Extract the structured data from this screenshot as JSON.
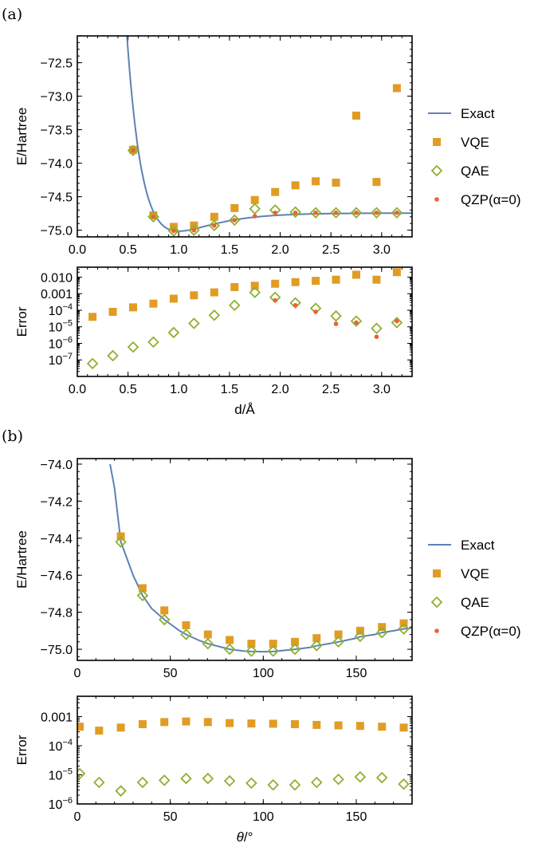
{
  "colors": {
    "exact": "#5e81b5",
    "vqe": "#e19c24",
    "qae": "#8fb032",
    "qzp": "#eb6235"
  },
  "chart_data": [
    {
      "id": "a-energy",
      "panel_label": "(a)",
      "type": "scatter",
      "xlim": [
        0,
        3.3
      ],
      "ylim": [
        -75.1,
        -72.1
      ],
      "xticks": [
        0,
        0.5,
        1,
        1.5,
        2,
        2.5,
        3
      ],
      "xticklabels": [
        "0.0",
        "0.5",
        "1.0",
        "1.5",
        "2.0",
        "2.5",
        "3.0"
      ],
      "yticks": [
        -72.5,
        -73,
        -73.5,
        -74,
        -74.5,
        -75
      ],
      "yticklabels": [
        "-72.5",
        "-73.0",
        "-73.5",
        "-74.0",
        "-74.5",
        "-75.0"
      ],
      "ylabel": "E/Hartree",
      "xlabel": "",
      "legend": {
        "entries": [
          "Exact",
          "VQE",
          "QAE",
          "QZP(α=0)"
        ],
        "placement": "right"
      },
      "exact": {
        "model": "morse",
        "De": 0.27,
        "a": 2.85,
        "re": 1.0,
        "Emin": -75.015,
        "xrange": [
          0.48,
          3.3
        ]
      },
      "series": [
        {
          "name": "VQE",
          "x": [
            0.55,
            0.75,
            0.95,
            1.15,
            1.35,
            1.55,
            1.75,
            1.95,
            2.15,
            2.35,
            2.55,
            2.75,
            2.95,
            3.15
          ],
          "y": [
            -73.8,
            -74.78,
            -74.95,
            -74.93,
            -74.8,
            -74.67,
            -74.55,
            -74.43,
            -74.33,
            -74.27,
            -74.29,
            -73.29,
            -74.28,
            -72.88
          ]
        },
        {
          "name": "QAE",
          "x": [
            0.55,
            0.75,
            0.95,
            1.15,
            1.35,
            1.55,
            1.75,
            1.95,
            2.15,
            2.35,
            2.55,
            2.75,
            2.95,
            3.15
          ],
          "y": [
            -73.81,
            -74.8,
            -75.01,
            -75.0,
            -74.93,
            -74.85,
            -74.68,
            -74.7,
            -74.73,
            -74.74,
            -74.74,
            -74.74,
            -74.74,
            -74.74
          ]
        },
        {
          "name": "QZP(α=0)",
          "x": [
            0.55,
            0.75,
            0.95,
            1.15,
            1.35,
            1.55,
            1.75,
            1.95,
            2.15,
            2.35,
            2.55,
            2.75,
            2.95,
            3.15
          ],
          "y": [
            -73.81,
            -74.8,
            -75.01,
            -75.0,
            -74.93,
            -74.85,
            -74.79,
            -74.74,
            -74.74,
            -74.74,
            -74.74,
            -74.74,
            -74.74,
            -74.74
          ]
        }
      ]
    },
    {
      "id": "a-error",
      "type": "scatter",
      "log_y": true,
      "xlim": [
        0,
        3.3
      ],
      "ylim": [
        1e-08,
        0.04
      ],
      "xticks": [
        0,
        0.5,
        1,
        1.5,
        2,
        2.5,
        3
      ],
      "xticklabels": [
        "0.0",
        "0.5",
        "1.0",
        "1.5",
        "2.0",
        "2.5",
        "3.0"
      ],
      "yticks": [
        0.01,
        0.001,
        0.0001,
        1e-05,
        1e-06,
        1e-07
      ],
      "yticklabels": [
        "0.010",
        "0.001",
        "10^-4",
        "10^-5",
        "10^-6",
        "10^-7"
      ],
      "ylabel": "Error",
      "xlabel": "d/Å",
      "series": [
        {
          "name": "VQE",
          "x": [
            0.15,
            0.35,
            0.55,
            0.75,
            0.95,
            1.15,
            1.35,
            1.55,
            1.75,
            1.95,
            2.15,
            2.35,
            2.55,
            2.75,
            2.95,
            3.15
          ],
          "y": [
            4e-05,
            8e-05,
            0.00015,
            0.00025,
            0.0005,
            0.0008,
            0.0012,
            0.0025,
            0.003,
            0.004,
            0.005,
            0.006,
            0.007,
            0.014,
            0.007,
            0.02
          ]
        },
        {
          "name": "QAE",
          "x": [
            0.15,
            0.35,
            0.55,
            0.75,
            0.95,
            1.15,
            1.35,
            1.55,
            1.75,
            1.95,
            2.15,
            2.35,
            2.55,
            2.75,
            2.95,
            3.15
          ],
          "y": [
            6e-08,
            1.8e-07,
            6e-07,
            1.2e-06,
            4.5e-06,
            1.6e-05,
            5e-05,
            0.0002,
            0.0012,
            0.0006,
            0.00028,
            0.00013,
            4.5e-05,
            2.2e-05,
            8e-06,
            1.8e-05
          ]
        },
        {
          "name": "QZP(α=0)",
          "x": [
            1.95,
            2.15,
            2.35,
            2.55,
            2.75,
            2.95,
            3.15
          ],
          "y": [
            0.0004,
            0.0002,
            8e-05,
            1.5e-05,
            1.8e-05,
            2.5e-06,
            2.2e-05
          ]
        }
      ]
    },
    {
      "id": "b-energy",
      "panel_label": "(b)",
      "type": "scatter",
      "xlim": [
        0,
        180
      ],
      "ylim": [
        -75.06,
        -73.97
      ],
      "xticks": [
        0,
        50,
        100,
        150
      ],
      "xticklabels": [
        "0",
        "50",
        "100",
        "150"
      ],
      "yticks": [
        -74.0,
        -74.2,
        -74.4,
        -74.6,
        -74.8,
        -75.0
      ],
      "yticklabels": [
        "-74.0",
        "-74.2",
        "-74.4",
        "-74.6",
        "-74.8",
        "-75.0"
      ],
      "ylabel": "E/Hartree",
      "xlabel": "",
      "legend": {
        "entries": [
          "Exact",
          "VQE",
          "QAE",
          "QZP(α=0)"
        ],
        "placement": "right"
      },
      "exact": {
        "model": "curve",
        "x": [
          17.6,
          20,
          23.4,
          30,
          35.1,
          40,
          46.8,
          55,
          58.5,
          65,
          70.2,
          80,
          81.9,
          90,
          93.6,
          100,
          105.3,
          110,
          117,
          125,
          128.7,
          135,
          140.4,
          150,
          152.1,
          160,
          163.8,
          170,
          175.5,
          180
        ],
        "y": [
          -74.0,
          -74.13,
          -74.42,
          -74.6,
          -74.71,
          -74.78,
          -74.84,
          -74.9,
          -74.92,
          -74.95,
          -74.97,
          -74.995,
          -75.0,
          -75.01,
          -75.012,
          -75.013,
          -75.012,
          -75.007,
          -75.0,
          -74.99,
          -74.981,
          -74.97,
          -74.96,
          -74.94,
          -74.932,
          -74.92,
          -74.91,
          -74.9,
          -74.89,
          -74.885
        ]
      },
      "series": [
        {
          "name": "VQE",
          "x": [
            23.4,
            35.1,
            46.8,
            58.5,
            70.2,
            81.9,
            93.6,
            105.3,
            117,
            128.7,
            140.4,
            152.1,
            163.8,
            175.5
          ],
          "y": [
            -74.39,
            -74.67,
            -74.79,
            -74.87,
            -74.92,
            -74.95,
            -74.97,
            -74.97,
            -74.96,
            -74.94,
            -74.92,
            -74.9,
            -74.88,
            -74.86
          ]
        },
        {
          "name": "QAE",
          "x": [
            23.4,
            35.1,
            46.8,
            58.5,
            70.2,
            81.9,
            93.6,
            105.3,
            117,
            128.7,
            140.4,
            152.1,
            163.8,
            175.5
          ],
          "y": [
            -74.42,
            -74.71,
            -74.84,
            -74.92,
            -74.97,
            -75.0,
            -75.01,
            -75.01,
            -75.0,
            -74.98,
            -74.96,
            -74.93,
            -74.91,
            -74.89
          ]
        }
      ]
    },
    {
      "id": "b-error",
      "type": "scatter",
      "log_y": true,
      "xlim": [
        0,
        180
      ],
      "ylim": [
        1e-06,
        0.005
      ],
      "xticks": [
        0,
        50,
        100,
        150
      ],
      "xticklabels": [
        "0",
        "50",
        "100",
        "150"
      ],
      "yticks": [
        0.001,
        0.0001,
        1e-05,
        1e-06
      ],
      "yticklabels": [
        "0.001",
        "10^-4",
        "10^-5",
        "10^-6"
      ],
      "ylabel": "Error",
      "xlabel": "θ/°",
      "series": [
        {
          "name": "VQE",
          "x": [
            1.3,
            11.7,
            23.4,
            35.1,
            46.8,
            58.5,
            70.2,
            81.9,
            93.6,
            105.3,
            117,
            128.7,
            140.4,
            152.1,
            163.8,
            175.5
          ],
          "y": [
            0.00045,
            0.00033,
            0.00042,
            0.00055,
            0.00065,
            0.00068,
            0.00065,
            0.0006,
            0.00058,
            0.00057,
            0.00055,
            0.00052,
            0.0005,
            0.00048,
            0.00045,
            0.00042
          ]
        },
        {
          "name": "QAE",
          "x": [
            1.3,
            11.7,
            23.4,
            35.1,
            46.8,
            58.5,
            70.2,
            81.9,
            93.6,
            105.3,
            117,
            128.7,
            140.4,
            152.1,
            163.8,
            175.5
          ],
          "y": [
            1.1e-05,
            5.5e-06,
            2.8e-06,
            5.5e-06,
            6.5e-06,
            7.5e-06,
            7.5e-06,
            6.2e-06,
            5.2e-06,
            4.5e-06,
            4.5e-06,
            5.5e-06,
            7e-06,
            8.5e-06,
            8e-06,
            4.8e-06
          ]
        }
      ]
    }
  ]
}
